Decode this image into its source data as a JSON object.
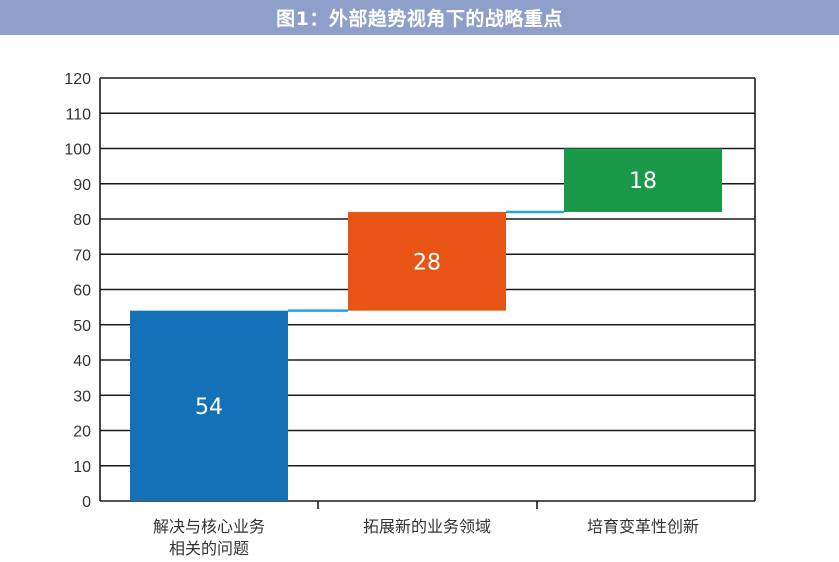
{
  "title": "图1：外部趋势视角下的战略重点",
  "chart_data": {
    "type": "bar",
    "subtype": "waterfall",
    "title": "图1：外部趋势视角下的战略重点",
    "xlabel": "",
    "ylabel": "",
    "categories": [
      [
        "解决与核心业务",
        "相关的问题"
      ],
      [
        "拓展新的业务领域"
      ],
      [
        "培育变革性创新"
      ]
    ],
    "values": [
      54,
      28,
      18
    ],
    "data_labels": [
      "54",
      "28",
      "18"
    ],
    "colors": [
      "#1471b8",
      "#e85416",
      "#1a9a48"
    ],
    "connector_color": "#29a3dc",
    "ylim": [
      0,
      120
    ],
    "yticks": [
      0,
      10,
      20,
      30,
      40,
      50,
      60,
      70,
      80,
      90,
      100,
      110,
      120
    ],
    "grid": true,
    "legend": "none"
  }
}
